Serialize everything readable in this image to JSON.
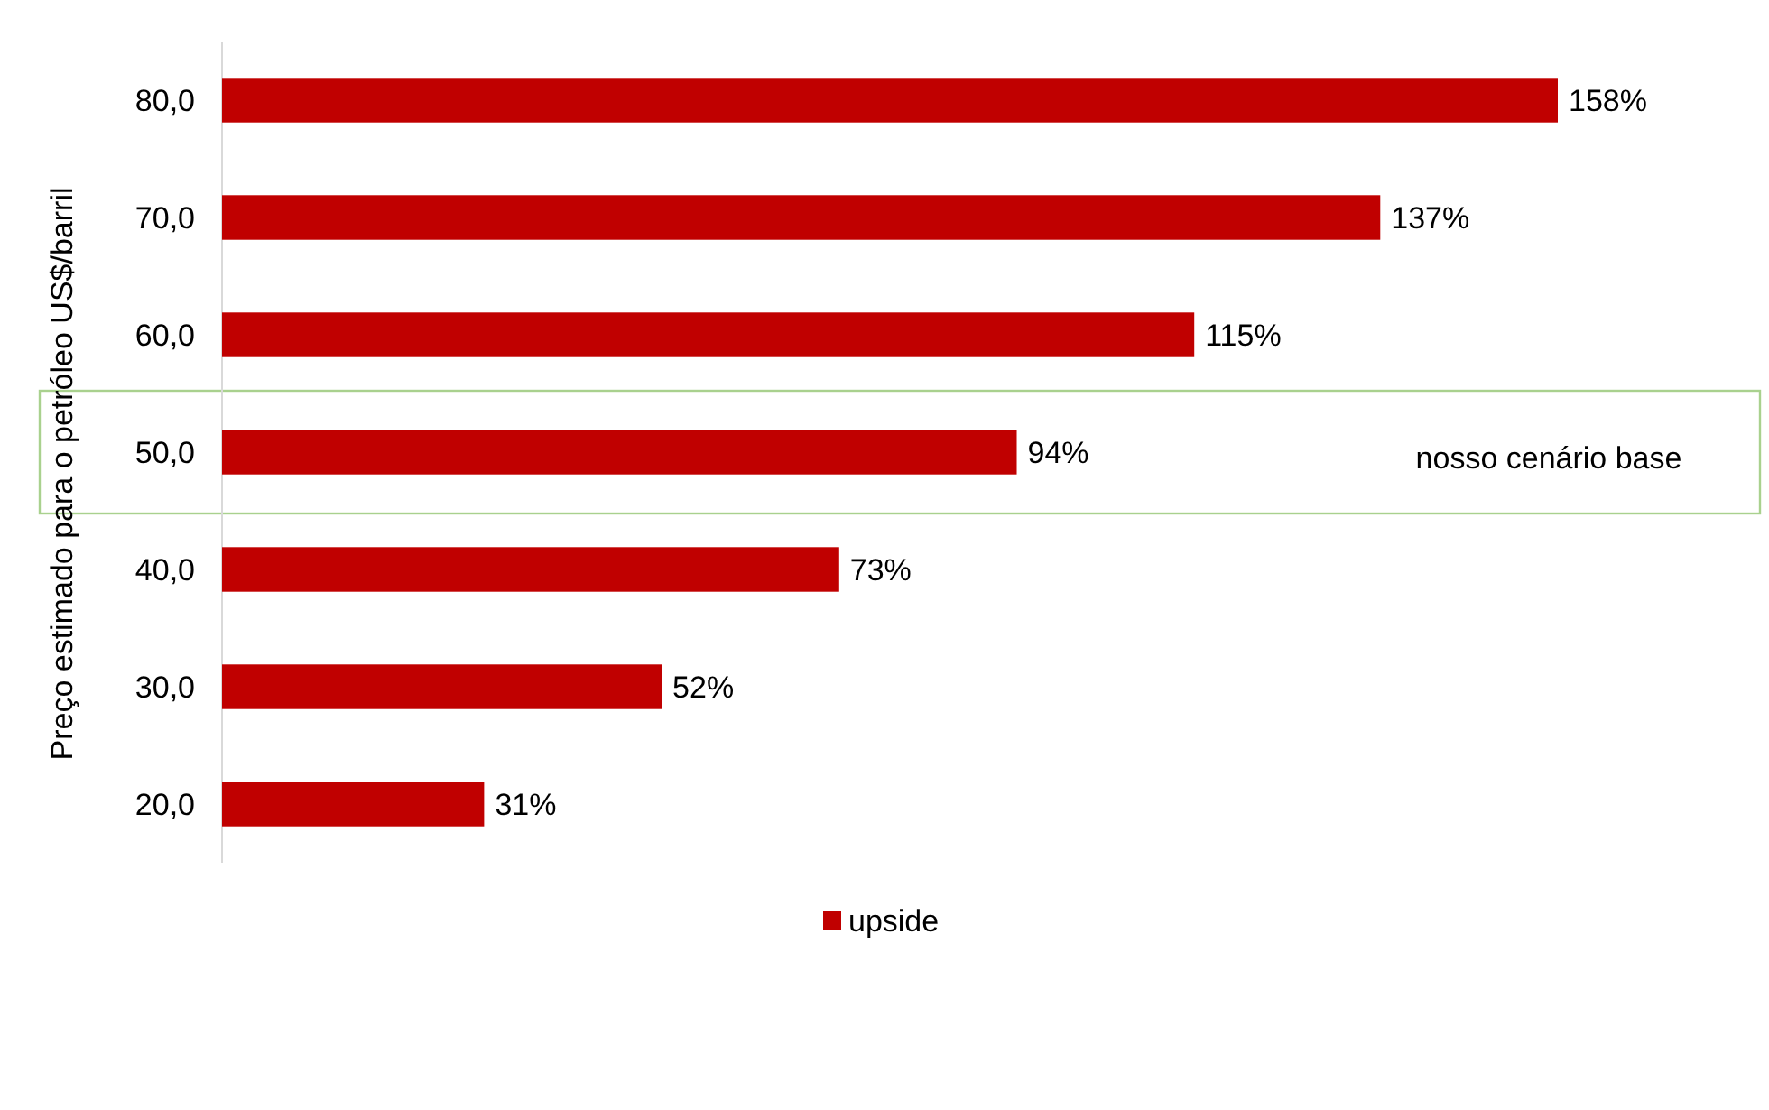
{
  "chart_data": {
    "type": "bar",
    "orientation": "horizontal",
    "ylabel": "Preço estimado para o petróleo US$/barril",
    "categories": [
      "80,0",
      "70,0",
      "60,0",
      "50,0",
      "40,0",
      "30,0",
      "20,0"
    ],
    "series": [
      {
        "name": "upside",
        "color": "#c00000",
        "values": [
          158,
          137,
          115,
          94,
          73,
          52,
          31
        ],
        "value_labels": [
          "158%",
          "137%",
          "115%",
          "94%",
          "73%",
          "52%",
          "31%"
        ]
      }
    ],
    "annotations": [
      "nosso cenário base"
    ],
    "legend": "bottom"
  }
}
